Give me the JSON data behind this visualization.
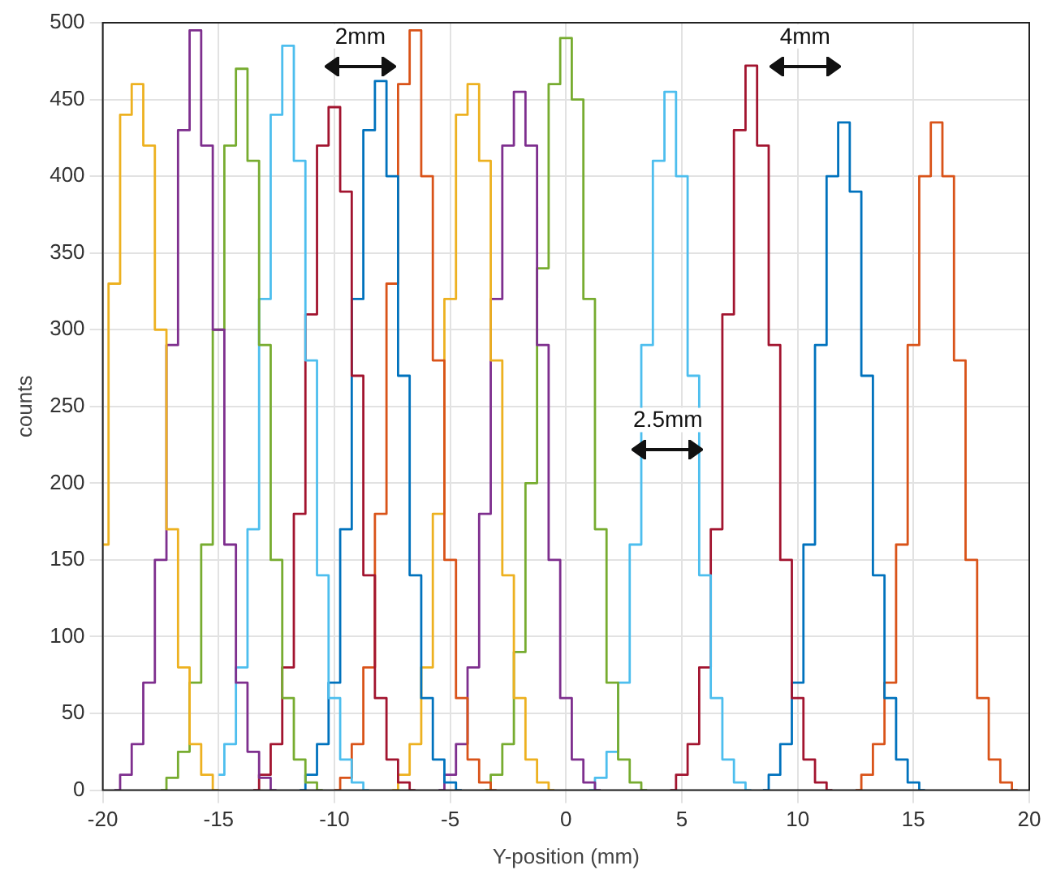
{
  "chart_data": {
    "type": "step",
    "xlabel": "Y-position (mm)",
    "ylabel": "counts",
    "xlim": [
      -20,
      20
    ],
    "xticks": [
      -20,
      -15,
      -10,
      -5,
      0,
      5,
      10,
      15,
      20
    ],
    "ylim": [
      0,
      500
    ],
    "yticks": [
      0,
      50,
      100,
      150,
      200,
      250,
      300,
      350,
      400,
      450,
      500
    ],
    "grid": true,
    "legend": false,
    "annotations": [
      "2mm",
      "4mm",
      "2.5mm"
    ],
    "series": [
      {
        "color": "#edb120",
        "x": [
          -20,
          -19.5,
          -19,
          -18.5,
          -18,
          -17.5,
          -17,
          -16.5,
          -16,
          -15.5,
          -15
        ],
        "values": [
          160,
          330,
          440,
          460,
          420,
          300,
          170,
          80,
          30,
          10,
          0
        ]
      },
      {
        "color": "#7e2f8e",
        "x": [
          -19.5,
          -19,
          -18.5,
          -18,
          -17.5,
          -17,
          -16.5,
          -16,
          -15.5,
          -15,
          -14.5,
          -14,
          -13.5,
          -13,
          -12.5
        ],
        "values": [
          0,
          10,
          30,
          70,
          150,
          290,
          430,
          495,
          420,
          300,
          160,
          70,
          25,
          8,
          0
        ]
      },
      {
        "color": "#77ac30",
        "x": [
          -17.5,
          -17,
          -16.5,
          -16,
          -15.5,
          -15,
          -14.5,
          -14,
          -13.5,
          -13,
          -12.5,
          -12,
          -11.5,
          -11,
          -10.5
        ],
        "values": [
          0,
          8,
          25,
          70,
          160,
          300,
          420,
          470,
          410,
          290,
          150,
          60,
          20,
          5,
          0
        ]
      },
      {
        "color": "#4dbeee",
        "x": [
          -15,
          -14.5,
          -14,
          -13.5,
          -13,
          -12.5,
          -12,
          -11.5,
          -11,
          -10.5,
          -10,
          -9.5,
          -9,
          -8.5
        ],
        "values": [
          10,
          30,
          80,
          170,
          320,
          440,
          485,
          410,
          280,
          140,
          60,
          20,
          5,
          0
        ]
      },
      {
        "color": "#a2142f",
        "x": [
          -13.5,
          -13,
          -12.5,
          -12,
          -11.5,
          -11,
          -10.5,
          -10,
          -9.5,
          -9,
          -8.5,
          -8,
          -7.5,
          -7,
          -6.5
        ],
        "values": [
          0,
          10,
          30,
          80,
          180,
          310,
          420,
          445,
          390,
          270,
          140,
          60,
          20,
          5,
          0
        ]
      },
      {
        "color": "#0072bd",
        "x": [
          -11.5,
          -11,
          -10.5,
          -10,
          -9.5,
          -9,
          -8.5,
          -8,
          -7.5,
          -7,
          -6.5,
          -6,
          -5.5,
          -5,
          -4.5
        ],
        "values": [
          0,
          10,
          30,
          70,
          170,
          320,
          430,
          462,
          400,
          270,
          140,
          60,
          20,
          5,
          0
        ]
      },
      {
        "color": "#d95319",
        "x": [
          -10,
          -9.5,
          -9,
          -8.5,
          -8,
          -7.5,
          -7,
          -6.5,
          -6,
          -5.5,
          -5,
          -4.5,
          -4,
          -3.5,
          -3
        ],
        "values": [
          0,
          8,
          30,
          80,
          180,
          330,
          460,
          495,
          400,
          280,
          150,
          60,
          20,
          5,
          0
        ]
      },
      {
        "color": "#edb120",
        "x": [
          -7.5,
          -7,
          -6.5,
          -6,
          -5.5,
          -5,
          -4.5,
          -4,
          -3.5,
          -3,
          -2.5,
          -2,
          -1.5,
          -1,
          -0.5
        ],
        "values": [
          0,
          10,
          30,
          80,
          180,
          320,
          440,
          460,
          410,
          280,
          140,
          60,
          20,
          5,
          0
        ]
      },
      {
        "color": "#7e2f8e",
        "x": [
          -5.5,
          -5,
          -4.5,
          -4,
          -3.5,
          -3,
          -2.5,
          -2,
          -1.5,
          -1,
          -0.5,
          0,
          0.5,
          1,
          1.5
        ],
        "values": [
          0,
          10,
          30,
          80,
          180,
          320,
          420,
          455,
          420,
          290,
          150,
          60,
          20,
          5,
          0
        ]
      },
      {
        "color": "#77ac30",
        "x": [
          -3.5,
          -3,
          -2.5,
          -2,
          -1.5,
          -1,
          -0.5,
          0,
          0.5,
          1,
          1.5,
          2,
          2.5,
          3,
          3.5
        ],
        "values": [
          0,
          10,
          30,
          90,
          200,
          340,
          460,
          490,
          450,
          320,
          170,
          70,
          20,
          5,
          0
        ]
      },
      {
        "color": "#4dbeee",
        "x": [
          1,
          1.5,
          2,
          2.5,
          3,
          3.5,
          4,
          4.5,
          5,
          5.5,
          6,
          6.5,
          7,
          7.5,
          8
        ],
        "values": [
          0,
          8,
          25,
          70,
          160,
          290,
          410,
          455,
          400,
          270,
          140,
          60,
          20,
          5,
          0
        ]
      },
      {
        "color": "#a2142f",
        "x": [
          4.5,
          5,
          5.5,
          6,
          6.5,
          7,
          7.5,
          8,
          8.5,
          9,
          9.5,
          10,
          10.5,
          11,
          11.5
        ],
        "values": [
          0,
          10,
          30,
          80,
          170,
          310,
          430,
          472,
          420,
          290,
          150,
          60,
          20,
          5,
          0
        ]
      },
      {
        "color": "#0072bd",
        "x": [
          8.5,
          9,
          9.5,
          10,
          10.5,
          11,
          11.5,
          12,
          12.5,
          13,
          13.5,
          14,
          14.5,
          15,
          15.5
        ],
        "values": [
          0,
          10,
          30,
          70,
          160,
          290,
          400,
          435,
          390,
          270,
          140,
          60,
          20,
          5,
          0
        ]
      },
      {
        "color": "#d95319",
        "x": [
          12.5,
          13,
          13.5,
          14,
          14.5,
          15,
          15.5,
          16,
          16.5,
          17,
          17.5,
          18,
          18.5,
          19,
          19.5
        ],
        "values": [
          0,
          10,
          30,
          70,
          160,
          290,
          400,
          435,
          400,
          280,
          150,
          60,
          20,
          5,
          0
        ]
      }
    ]
  }
}
